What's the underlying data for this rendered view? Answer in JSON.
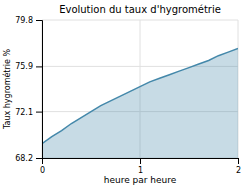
{
  "chart_data": {
    "type": "area",
    "title": "Evolution du taux d'hygrométrie",
    "x_label": "heure par heure",
    "y_label": "Taux hygrométrie %",
    "x": [
      0.0,
      0.1,
      0.2,
      0.3,
      0.4,
      0.5,
      0.6,
      0.7,
      0.8,
      0.9,
      1.0,
      1.1,
      1.2,
      1.3,
      1.4,
      1.5,
      1.6,
      1.7,
      1.8,
      1.9,
      2.0
    ],
    "values": [
      69.4,
      70.0,
      70.5,
      71.1,
      71.6,
      72.1,
      72.6,
      73.0,
      73.4,
      73.8,
      74.2,
      74.6,
      74.9,
      75.2,
      75.5,
      75.8,
      76.1,
      76.4,
      76.8,
      77.1,
      77.4
    ],
    "color": "#4488aa",
    "xlim": [
      0,
      2
    ],
    "ylim": [
      68.2,
      79.8
    ],
    "xticks": [
      0,
      1,
      2
    ],
    "yticks": [
      68.2,
      72.1,
      75.9,
      79.8
    ],
    "grid": true
  }
}
